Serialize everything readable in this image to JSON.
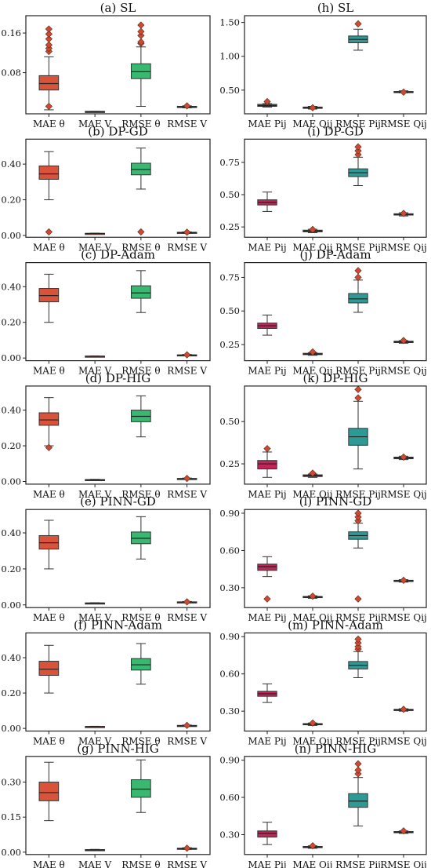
{
  "colors": {
    "mae_theta": "#d9533b",
    "rmse_theta": "#38b870",
    "mae_pq": "#c22557",
    "rmse_pq": "#2e9a96",
    "outlier": "#cc4a32",
    "frame": "#222222"
  },
  "chart_data": [
    {
      "type": "box",
      "title": "(a) SL",
      "categories": [
        "MAE θ",
        "MAE V",
        "RMSE θ",
        "RMSE V"
      ],
      "yticks": [
        "0.08",
        "0.16"
      ],
      "ytick_values": [
        0.08,
        0.16
      ],
      "ylim": [
        -0.003,
        0.195
      ],
      "boxes": [
        {
          "whislo": 0.005,
          "q1": 0.045,
          "med": 0.058,
          "q3": 0.074,
          "whishi": 0.112,
          "fliers": [
            0.012,
            0.123,
            0.129,
            0.136,
            0.148,
            0.158,
            0.168
          ],
          "color_key": "mae_theta"
        },
        {
          "whislo": 0.001,
          "q1": 0.001,
          "med": 0.001,
          "q3": 0.002,
          "whishi": 0.002,
          "fliers": [],
          "color_key": "mae_theta"
        },
        {
          "whislo": 0.012,
          "q1": 0.068,
          "med": 0.082,
          "q3": 0.098,
          "whishi": 0.132,
          "fliers": [
            0.139,
            0.142,
            0.155,
            0.163,
            0.176
          ],
          "color_key": "rmse_theta"
        },
        {
          "whislo": 0.009,
          "q1": 0.01,
          "med": 0.011,
          "q3": 0.012,
          "whishi": 0.013,
          "fliers": [
            0.013
          ],
          "color_key": "rmse_theta"
        }
      ]
    },
    {
      "type": "box",
      "title": "(h) SL",
      "categories": [
        "MAE Pij",
        "MAE Qij",
        "RMSE Pij",
        "RMSE Qij"
      ],
      "yticks": [
        "0.50",
        "1.00",
        "1.50"
      ],
      "ytick_values": [
        0.5,
        1.0,
        1.5
      ],
      "ylim": [
        0.15,
        1.6
      ],
      "boxes": [
        {
          "whislo": 0.25,
          "q1": 0.26,
          "med": 0.27,
          "q3": 0.29,
          "whishi": 0.3,
          "fliers": [
            0.33
          ],
          "color_key": "mae_pq"
        },
        {
          "whislo": 0.22,
          "q1": 0.23,
          "med": 0.24,
          "q3": 0.25,
          "whishi": 0.26,
          "fliers": [
            0.24
          ],
          "color_key": "mae_pq"
        },
        {
          "whislo": 1.09,
          "q1": 1.2,
          "med": 1.25,
          "q3": 1.3,
          "whishi": 1.4,
          "fliers": [
            1.48
          ],
          "color_key": "rmse_pq"
        },
        {
          "whislo": 0.46,
          "q1": 0.47,
          "med": 0.47,
          "q3": 0.48,
          "whishi": 0.49,
          "fliers": [
            0.47
          ],
          "color_key": "rmse_pq"
        }
      ]
    },
    {
      "type": "box",
      "title": "(b) DP-GD",
      "categories": [
        "MAE θ",
        "MAE V",
        "RMSE θ",
        "RMSE V"
      ],
      "yticks": [
        "0.00",
        "0.20",
        "0.40"
      ],
      "ytick_values": [
        0.0,
        0.2,
        0.4
      ],
      "ylim": [
        -0.01,
        0.54
      ],
      "boxes": [
        {
          "whislo": 0.2,
          "q1": 0.315,
          "med": 0.345,
          "q3": 0.39,
          "whishi": 0.47,
          "fliers": [
            0.02
          ],
          "color_key": "mae_theta"
        },
        {
          "whislo": 0.008,
          "q1": 0.01,
          "med": 0.011,
          "q3": 0.012,
          "whishi": 0.013,
          "fliers": [],
          "color_key": "mae_theta"
        },
        {
          "whislo": 0.26,
          "q1": 0.34,
          "med": 0.37,
          "q3": 0.405,
          "whishi": 0.49,
          "fliers": [
            0.02
          ],
          "color_key": "rmse_theta"
        },
        {
          "whislo": 0.012,
          "q1": 0.015,
          "med": 0.016,
          "q3": 0.018,
          "whishi": 0.02,
          "fliers": [
            0.018
          ],
          "color_key": "rmse_theta"
        }
      ]
    },
    {
      "type": "box",
      "title": "(i) DP-GD",
      "categories": [
        "MAE Pij",
        "MAE Qij",
        "RMSE Pij",
        "RMSE Qij"
      ],
      "yticks": [
        "0.25",
        "0.50",
        "0.75"
      ],
      "ytick_values": [
        0.25,
        0.5,
        0.75
      ],
      "ylim": [
        0.17,
        0.93
      ],
      "boxes": [
        {
          "whislo": 0.37,
          "q1": 0.42,
          "med": 0.44,
          "q3": 0.46,
          "whishi": 0.52,
          "fliers": [],
          "color_key": "mae_pq"
        },
        {
          "whislo": 0.205,
          "q1": 0.212,
          "med": 0.218,
          "q3": 0.225,
          "whishi": 0.232,
          "fliers": [
            0.23
          ],
          "color_key": "mae_pq"
        },
        {
          "whislo": 0.57,
          "q1": 0.64,
          "med": 0.67,
          "q3": 0.7,
          "whishi": 0.79,
          "fliers": [
            0.81,
            0.84,
            0.87
          ],
          "color_key": "rmse_pq"
        },
        {
          "whislo": 0.335,
          "q1": 0.342,
          "med": 0.347,
          "q3": 0.352,
          "whishi": 0.36,
          "fliers": [
            0.355
          ],
          "color_key": "rmse_pq"
        }
      ]
    },
    {
      "type": "box",
      "title": "(c) DP-Adam",
      "categories": [
        "MAE θ",
        "MAE V",
        "RMSE θ",
        "RMSE V"
      ],
      "yticks": [
        "0.00",
        "0.20",
        "0.40"
      ],
      "ytick_values": [
        0.0,
        0.2,
        0.4
      ],
      "ylim": [
        -0.015,
        0.535
      ],
      "boxes": [
        {
          "whislo": 0.2,
          "q1": 0.315,
          "med": 0.35,
          "q3": 0.39,
          "whishi": 0.47,
          "fliers": [],
          "color_key": "mae_theta"
        },
        {
          "whislo": 0.008,
          "q1": 0.009,
          "med": 0.01,
          "q3": 0.011,
          "whishi": 0.012,
          "fliers": [],
          "color_key": "mae_theta"
        },
        {
          "whislo": 0.255,
          "q1": 0.335,
          "med": 0.365,
          "q3": 0.405,
          "whishi": 0.49,
          "fliers": [],
          "color_key": "rmse_theta"
        },
        {
          "whislo": 0.012,
          "q1": 0.015,
          "med": 0.016,
          "q3": 0.018,
          "whishi": 0.02,
          "fliers": [
            0.018
          ],
          "color_key": "rmse_theta"
        }
      ]
    },
    {
      "type": "box",
      "title": "(j) DP-Adam",
      "categories": [
        "MAE Pij",
        "MAE Qij",
        "RMSE Pij",
        "RMSE Qij"
      ],
      "yticks": [
        "0.25",
        "0.50",
        "0.75"
      ],
      "ytick_values": [
        0.25,
        0.5,
        0.75
      ],
      "ylim": [
        0.13,
        0.86
      ],
      "boxes": [
        {
          "whislo": 0.32,
          "q1": 0.37,
          "med": 0.39,
          "q3": 0.41,
          "whishi": 0.47,
          "fliers": [],
          "color_key": "mae_pq"
        },
        {
          "whislo": 0.17,
          "q1": 0.175,
          "med": 0.18,
          "q3": 0.185,
          "whishi": 0.19,
          "fliers": [
            0.195
          ],
          "color_key": "mae_pq"
        },
        {
          "whislo": 0.49,
          "q1": 0.56,
          "med": 0.59,
          "q3": 0.63,
          "whishi": 0.73,
          "fliers": [
            0.75,
            0.8
          ],
          "color_key": "rmse_pq"
        },
        {
          "whislo": 0.26,
          "q1": 0.265,
          "med": 0.27,
          "q3": 0.275,
          "whishi": 0.28,
          "fliers": [
            0.28
          ],
          "color_key": "rmse_pq"
        }
      ]
    },
    {
      "type": "box",
      "title": "(d) DP-HIG",
      "categories": [
        "MAE θ",
        "MAE V",
        "RMSE θ",
        "RMSE V"
      ],
      "yticks": [
        "0.00",
        "0.20",
        "0.40"
      ],
      "ytick_values": [
        0.0,
        0.2,
        0.4
      ],
      "ylim": [
        -0.015,
        0.535
      ],
      "boxes": [
        {
          "whislo": 0.2,
          "q1": 0.315,
          "med": 0.345,
          "q3": 0.385,
          "whishi": 0.47,
          "fliers": [
            0.19
          ],
          "color_key": "mae_theta"
        },
        {
          "whislo": 0.008,
          "q1": 0.009,
          "med": 0.01,
          "q3": 0.011,
          "whishi": 0.012,
          "fliers": [],
          "color_key": "mae_theta"
        },
        {
          "whislo": 0.25,
          "q1": 0.335,
          "med": 0.365,
          "q3": 0.4,
          "whishi": 0.48,
          "fliers": [],
          "color_key": "rmse_theta"
        },
        {
          "whislo": 0.012,
          "q1": 0.014,
          "med": 0.015,
          "q3": 0.017,
          "whishi": 0.019,
          "fliers": [
            0.017
          ],
          "color_key": "rmse_theta"
        }
      ]
    },
    {
      "type": "box",
      "title": "(k) DP-HIG",
      "categories": [
        "MAE Pij",
        "MAE Qij",
        "RMSE Pij",
        "RMSE Qij"
      ],
      "yticks": [
        "0.25",
        "0.50"
      ],
      "ytick_values": [
        0.25,
        0.5
      ],
      "ylim": [
        0.13,
        0.71
      ],
      "boxes": [
        {
          "whislo": 0.17,
          "q1": 0.22,
          "med": 0.25,
          "q3": 0.27,
          "whishi": 0.32,
          "fliers": [
            0.34
          ],
          "color_key": "mae_pq"
        },
        {
          "whislo": 0.17,
          "q1": 0.175,
          "med": 0.18,
          "q3": 0.185,
          "whishi": 0.19,
          "fliers": [
            0.195
          ],
          "color_key": "mae_pq"
        },
        {
          "whislo": 0.22,
          "q1": 0.36,
          "med": 0.41,
          "q3": 0.46,
          "whishi": 0.62,
          "fliers": [
            0.64,
            0.69
          ],
          "color_key": "rmse_pq"
        },
        {
          "whislo": 0.275,
          "q1": 0.28,
          "med": 0.285,
          "q3": 0.29,
          "whishi": 0.295,
          "fliers": [
            0.29
          ],
          "color_key": "rmse_pq"
        }
      ]
    },
    {
      "type": "box",
      "title": "(e) PINN-GD",
      "categories": [
        "MAE θ",
        "MAE V",
        "RMSE θ",
        "RMSE V"
      ],
      "yticks": [
        "0.00",
        "0.20",
        "0.40"
      ],
      "ytick_values": [
        0.0,
        0.2,
        0.4
      ],
      "ylim": [
        -0.015,
        0.53
      ],
      "boxes": [
        {
          "whislo": 0.2,
          "q1": 0.31,
          "med": 0.345,
          "q3": 0.385,
          "whishi": 0.47,
          "fliers": [],
          "color_key": "mae_theta"
        },
        {
          "whislo": 0.008,
          "q1": 0.009,
          "med": 0.01,
          "q3": 0.011,
          "whishi": 0.012,
          "fliers": [],
          "color_key": "mae_theta"
        },
        {
          "whislo": 0.255,
          "q1": 0.34,
          "med": 0.37,
          "q3": 0.405,
          "whishi": 0.49,
          "fliers": [],
          "color_key": "rmse_theta"
        },
        {
          "whislo": 0.012,
          "q1": 0.014,
          "med": 0.015,
          "q3": 0.017,
          "whishi": 0.019,
          "fliers": [
            0.017
          ],
          "color_key": "rmse_theta"
        }
      ]
    },
    {
      "type": "box",
      "title": "(l) PINN-GD",
      "categories": [
        "MAE Pij",
        "MAE Qij",
        "RMSE Pij",
        "RMSE Qij"
      ],
      "yticks": [
        "0.30",
        "0.60",
        "0.90"
      ],
      "ytick_values": [
        0.3,
        0.6,
        0.9
      ],
      "ylim": [
        0.14,
        0.93
      ],
      "boxes": [
        {
          "whislo": 0.39,
          "q1": 0.44,
          "med": 0.47,
          "q3": 0.49,
          "whishi": 0.55,
          "fliers": [
            0.21
          ],
          "color_key": "mae_pq"
        },
        {
          "whislo": 0.215,
          "q1": 0.22,
          "med": 0.225,
          "q3": 0.23,
          "whishi": 0.235,
          "fliers": [
            0.232
          ],
          "color_key": "mae_pq"
        },
        {
          "whislo": 0.62,
          "q1": 0.69,
          "med": 0.72,
          "q3": 0.75,
          "whishi": 0.82,
          "fliers": [
            0.84,
            0.87,
            0.9,
            0.21
          ],
          "color_key": "rmse_pq"
        },
        {
          "whislo": 0.345,
          "q1": 0.35,
          "med": 0.355,
          "q3": 0.36,
          "whishi": 0.365,
          "fliers": [
            0.36
          ],
          "color_key": "rmse_pq"
        }
      ]
    },
    {
      "type": "box",
      "title": "(f) PINN-Adam",
      "categories": [
        "MAE θ",
        "MAE V",
        "RMSE θ",
        "RMSE V"
      ],
      "yticks": [
        "0.00",
        "0.20",
        "0.40"
      ],
      "ytick_values": [
        0.0,
        0.2,
        0.4
      ],
      "ylim": [
        -0.015,
        0.54
      ],
      "boxes": [
        {
          "whislo": 0.2,
          "q1": 0.3,
          "med": 0.335,
          "q3": 0.38,
          "whishi": 0.47,
          "fliers": [],
          "color_key": "mae_theta"
        },
        {
          "whislo": 0.008,
          "q1": 0.009,
          "med": 0.01,
          "q3": 0.011,
          "whishi": 0.012,
          "fliers": [],
          "color_key": "mae_theta"
        },
        {
          "whislo": 0.25,
          "q1": 0.33,
          "med": 0.36,
          "q3": 0.395,
          "whishi": 0.48,
          "fliers": [],
          "color_key": "rmse_theta"
        },
        {
          "whislo": 0.012,
          "q1": 0.014,
          "med": 0.015,
          "q3": 0.017,
          "whishi": 0.019,
          "fliers": [
            0.017
          ],
          "color_key": "rmse_theta"
        }
      ]
    },
    {
      "type": "box",
      "title": "(m) PINN-Adam",
      "categories": [
        "MAE Pij",
        "MAE Qij",
        "RMSE Pij",
        "RMSE Qij"
      ],
      "yticks": [
        "0.30",
        "0.60",
        "0.90"
      ],
      "ytick_values": [
        0.3,
        0.6,
        0.9
      ],
      "ylim": [
        0.14,
        0.93
      ],
      "boxes": [
        {
          "whislo": 0.37,
          "q1": 0.42,
          "med": 0.44,
          "q3": 0.46,
          "whishi": 0.52,
          "fliers": [],
          "color_key": "mae_pq"
        },
        {
          "whislo": 0.185,
          "q1": 0.19,
          "med": 0.195,
          "q3": 0.2,
          "whishi": 0.205,
          "fliers": [
            0.205
          ],
          "color_key": "mae_pq"
        },
        {
          "whislo": 0.57,
          "q1": 0.64,
          "med": 0.67,
          "q3": 0.7,
          "whishi": 0.78,
          "fliers": [
            0.8,
            0.82,
            0.85,
            0.88
          ],
          "color_key": "rmse_pq"
        },
        {
          "whislo": 0.3,
          "q1": 0.305,
          "med": 0.31,
          "q3": 0.315,
          "whishi": 0.32,
          "fliers": [
            0.315
          ],
          "color_key": "rmse_pq"
        }
      ]
    },
    {
      "type": "box",
      "title": "(g) PINN-HIG",
      "categories": [
        "MAE θ",
        "MAE V",
        "RMSE θ",
        "RMSE V"
      ],
      "yticks": [
        "0.00",
        "0.15",
        "0.30"
      ],
      "ytick_values": [
        0.0,
        0.15,
        0.3
      ],
      "ylim": [
        -0.01,
        0.41
      ],
      "boxes": [
        {
          "whislo": 0.135,
          "q1": 0.22,
          "med": 0.255,
          "q3": 0.3,
          "whishi": 0.385,
          "fliers": [],
          "color_key": "mae_theta"
        },
        {
          "whislo": 0.008,
          "q1": 0.009,
          "med": 0.01,
          "q3": 0.011,
          "whishi": 0.012,
          "fliers": [],
          "color_key": "mae_theta"
        },
        {
          "whislo": 0.17,
          "q1": 0.235,
          "med": 0.27,
          "q3": 0.31,
          "whishi": 0.395,
          "fliers": [],
          "color_key": "rmse_theta"
        },
        {
          "whislo": 0.012,
          "q1": 0.014,
          "med": 0.015,
          "q3": 0.017,
          "whishi": 0.019,
          "fliers": [
            0.017
          ],
          "color_key": "rmse_theta"
        }
      ]
    },
    {
      "type": "box",
      "title": "(n) PINN-HIG",
      "categories": [
        "MAE Pij",
        "MAE Qij",
        "RMSE Pij",
        "RMSE Qij"
      ],
      "yticks": [
        "0.30",
        "0.60",
        "0.90"
      ],
      "ytick_values": [
        0.3,
        0.6,
        0.9
      ],
      "ylim": [
        0.14,
        0.93
      ],
      "boxes": [
        {
          "whislo": 0.22,
          "q1": 0.28,
          "med": 0.31,
          "q3": 0.33,
          "whishi": 0.4,
          "fliers": [],
          "color_key": "mae_pq"
        },
        {
          "whislo": 0.19,
          "q1": 0.195,
          "med": 0.2,
          "q3": 0.205,
          "whishi": 0.21,
          "fliers": [
            0.21
          ],
          "color_key": "mae_pq"
        },
        {
          "whislo": 0.37,
          "q1": 0.52,
          "med": 0.57,
          "q3": 0.63,
          "whishi": 0.76,
          "fliers": [
            0.79,
            0.82,
            0.87
          ],
          "color_key": "rmse_pq"
        },
        {
          "whislo": 0.31,
          "q1": 0.315,
          "med": 0.32,
          "q3": 0.325,
          "whishi": 0.33,
          "fliers": [
            0.33
          ],
          "color_key": "rmse_pq"
        }
      ]
    }
  ]
}
